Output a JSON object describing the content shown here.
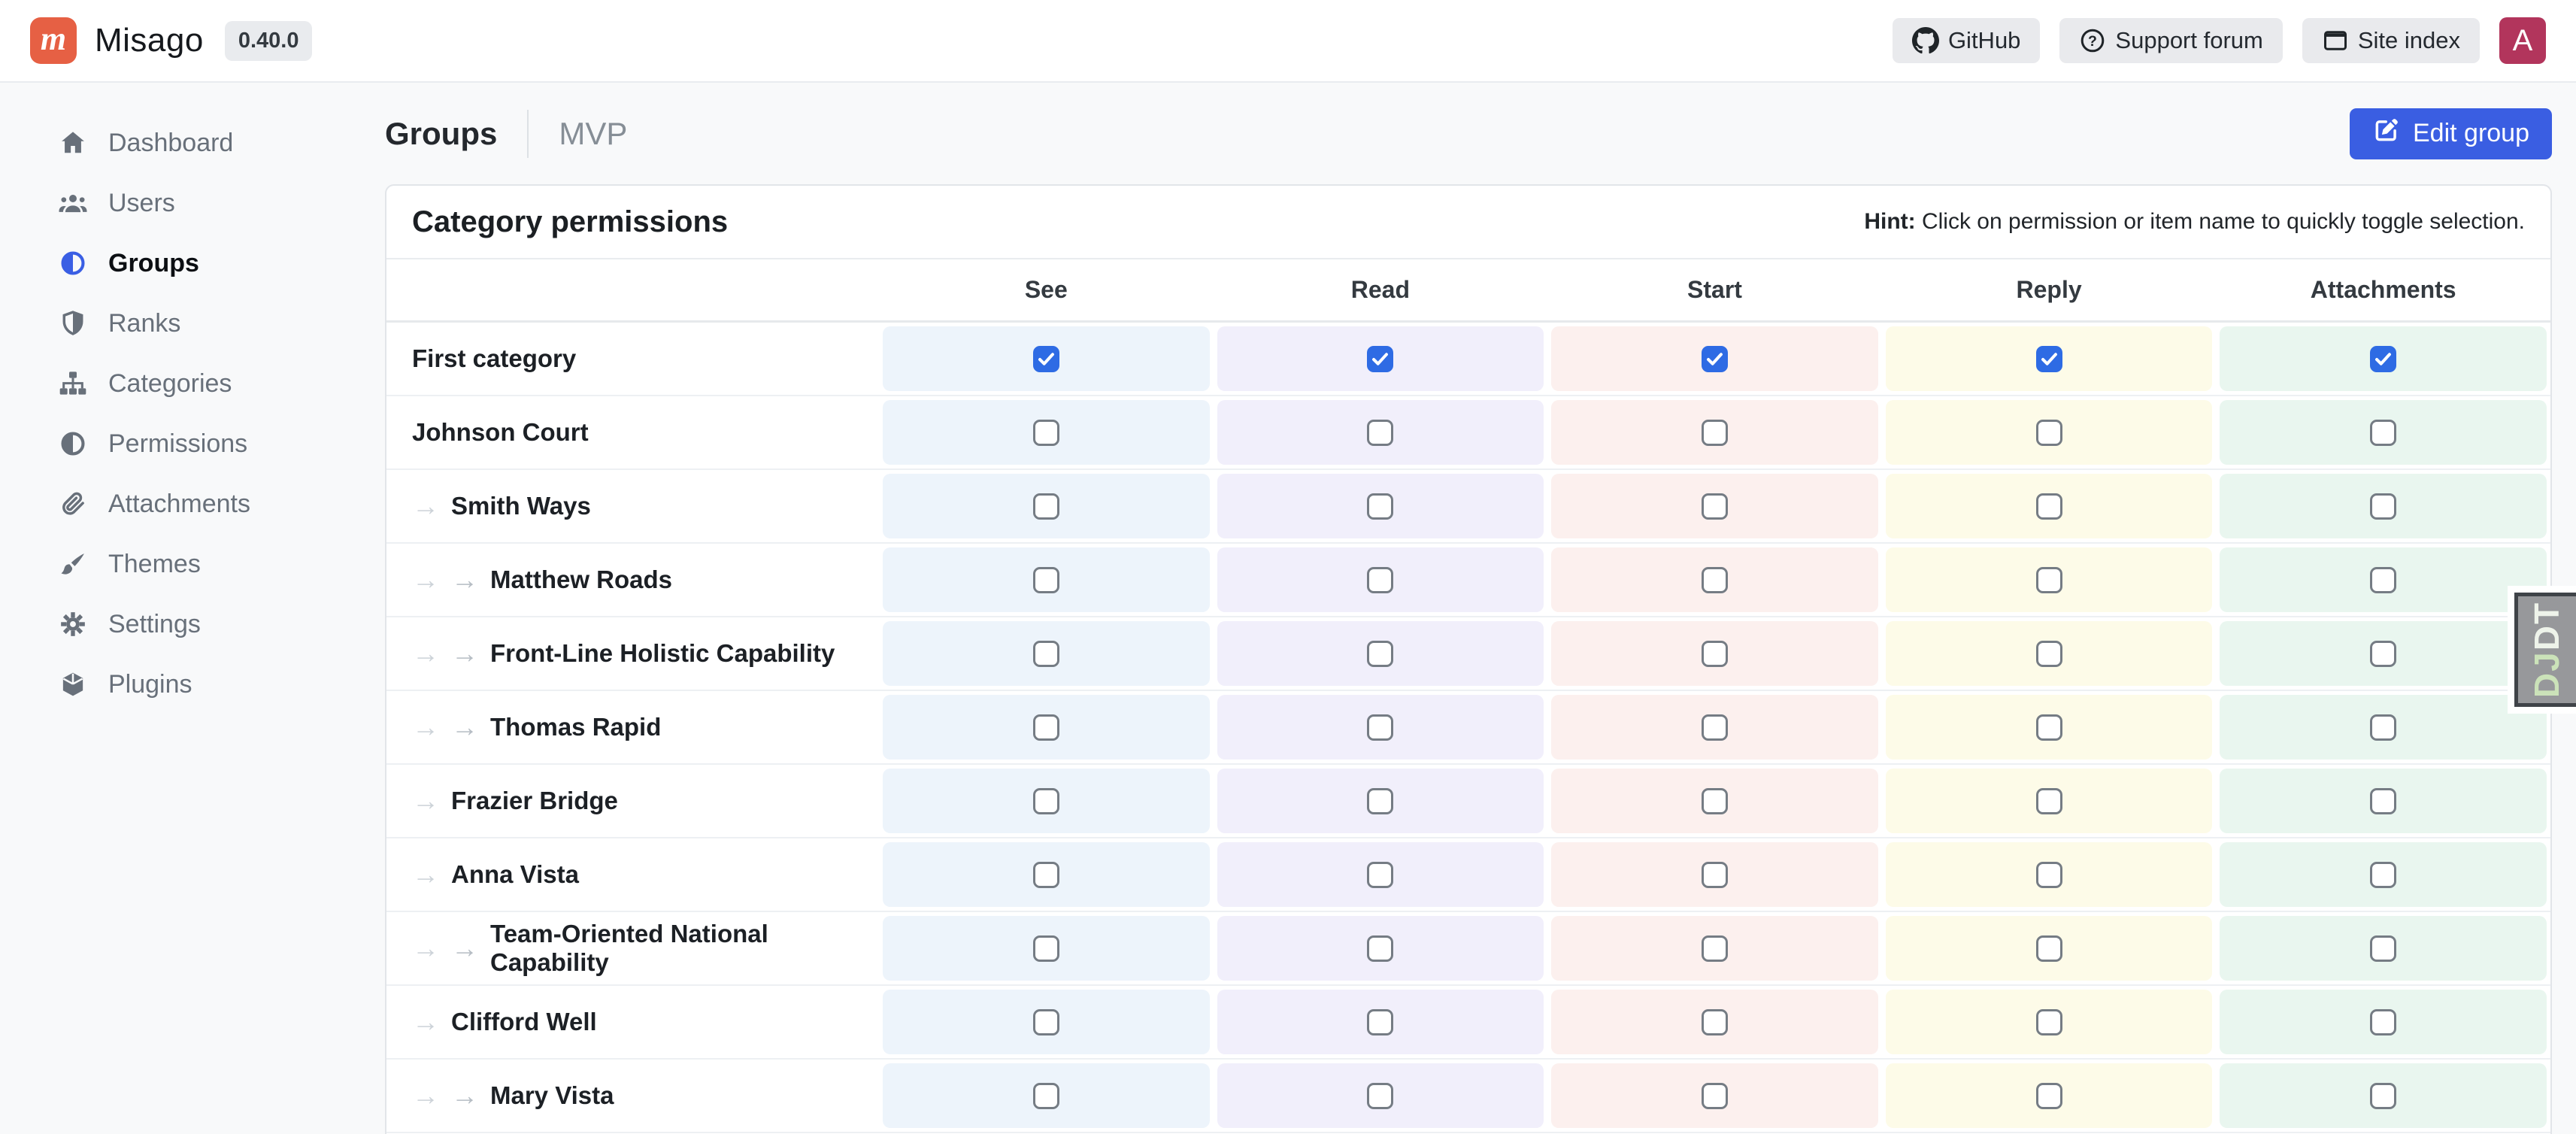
{
  "topbar": {
    "brand": "Misago",
    "logo_letter": "m",
    "version": "0.40.0",
    "links": [
      {
        "label": "GitHub",
        "icon": "github-icon"
      },
      {
        "label": "Support forum",
        "icon": "question-circle-icon"
      },
      {
        "label": "Site index",
        "icon": "window-icon"
      }
    ],
    "avatar_letter": "A"
  },
  "sidebar": {
    "items": [
      {
        "label": "Dashboard",
        "icon": "home-icon",
        "active": false
      },
      {
        "label": "Users",
        "icon": "users-icon",
        "active": false
      },
      {
        "label": "Groups",
        "icon": "circle-half-icon",
        "active": true
      },
      {
        "label": "Ranks",
        "icon": "shield-icon",
        "active": false
      },
      {
        "label": "Categories",
        "icon": "sitemap-icon",
        "active": false
      },
      {
        "label": "Permissions",
        "icon": "circle-half-icon",
        "active": false
      },
      {
        "label": "Attachments",
        "icon": "paperclip-icon",
        "active": false
      },
      {
        "label": "Themes",
        "icon": "brush-icon",
        "active": false
      },
      {
        "label": "Settings",
        "icon": "gear-icon",
        "active": false
      },
      {
        "label": "Plugins",
        "icon": "cube-icon",
        "active": false
      }
    ]
  },
  "breadcrumb": {
    "section": "Groups",
    "current": "MVP"
  },
  "actions": {
    "edit_group_label": "Edit group"
  },
  "card": {
    "title": "Category permissions",
    "hint_label": "Hint:",
    "hint_text": " Click on permission or item name to quickly toggle selection."
  },
  "table": {
    "columns": [
      {
        "id": "see",
        "label": "See",
        "cell_color": "#edf4fb"
      },
      {
        "id": "read",
        "label": "Read",
        "cell_color": "#f1effb"
      },
      {
        "id": "start",
        "label": "Start",
        "cell_color": "#fcf0ee"
      },
      {
        "id": "reply",
        "label": "Reply",
        "cell_color": "#fdfbe8"
      },
      {
        "id": "attachments",
        "label": "Attachments",
        "cell_color": "#e9f6ef"
      }
    ],
    "rows": [
      {
        "name": "First category",
        "depth": 0,
        "checks": [
          true,
          true,
          true,
          true,
          true
        ]
      },
      {
        "name": "Johnson Court",
        "depth": 0,
        "checks": [
          false,
          false,
          false,
          false,
          false
        ]
      },
      {
        "name": "Smith Ways",
        "depth": 1,
        "checks": [
          false,
          false,
          false,
          false,
          false
        ]
      },
      {
        "name": "Matthew Roads",
        "depth": 2,
        "checks": [
          false,
          false,
          false,
          false,
          false
        ]
      },
      {
        "name": "Front-Line Holistic Capability",
        "depth": 2,
        "checks": [
          false,
          false,
          false,
          false,
          false
        ]
      },
      {
        "name": "Thomas Rapid",
        "depth": 2,
        "checks": [
          false,
          false,
          false,
          false,
          false
        ]
      },
      {
        "name": "Frazier Bridge",
        "depth": 1,
        "checks": [
          false,
          false,
          false,
          false,
          false
        ]
      },
      {
        "name": "Anna Vista",
        "depth": 1,
        "checks": [
          false,
          false,
          false,
          false,
          false
        ]
      },
      {
        "name": "Team-Oriented National Capability",
        "depth": 2,
        "checks": [
          false,
          false,
          false,
          false,
          false
        ]
      },
      {
        "name": "Clifford Well",
        "depth": 1,
        "checks": [
          false,
          false,
          false,
          false,
          false
        ]
      },
      {
        "name": "Mary Vista",
        "depth": 2,
        "checks": [
          false,
          false,
          false,
          false,
          false
        ]
      }
    ]
  },
  "djdt": {
    "label": "DJDT"
  },
  "colors": {
    "accent_blue": "#3a5ee2",
    "checkbox_checked": "#2e6be4",
    "logo_orange": "#e66044",
    "avatar_crimson": "#b2355c",
    "sidebar_active_icon": "#3a5fe4"
  }
}
